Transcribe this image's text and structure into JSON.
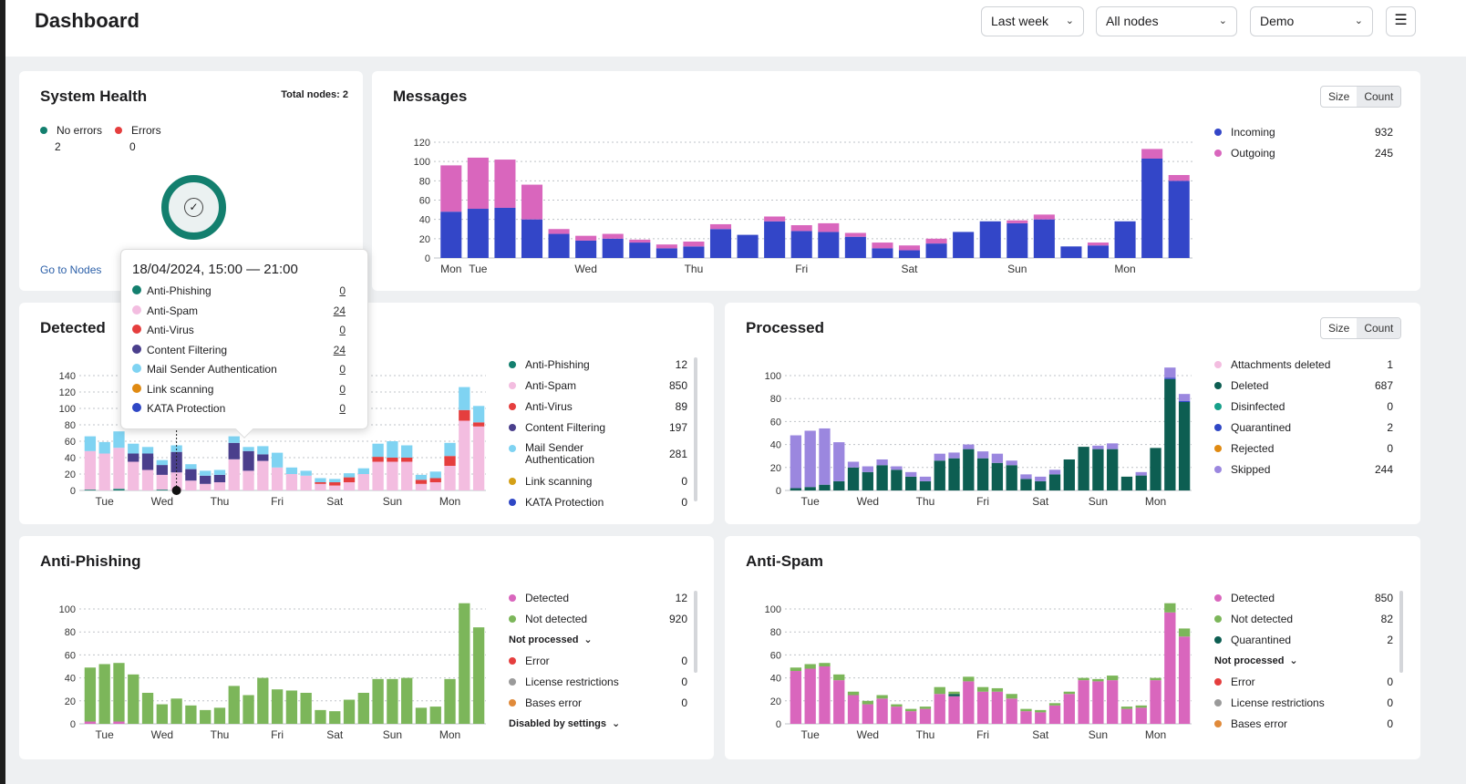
{
  "header": {
    "title": "Dashboard",
    "period": "Last week",
    "nodes": "All nodes",
    "tenant": "Demo"
  },
  "system_health": {
    "title": "System Health",
    "total_nodes": "Total nodes: 2",
    "no_errors_label": "No errors",
    "no_errors_value": "2",
    "errors_label": "Errors",
    "errors_value": "0",
    "link": "Go to Nodes"
  },
  "size_label": "Size",
  "count_label": "Count",
  "tooltip": {
    "title": "18/04/2024, 15:00 — 21:00",
    "rows": [
      {
        "label": "Anti-Phishing",
        "value": "0",
        "color": "#137f6e"
      },
      {
        "label": "Anti-Spam",
        "value": "24",
        "color": "#f3bde0"
      },
      {
        "label": "Anti-Virus",
        "value": "0",
        "color": "#e53e3e"
      },
      {
        "label": "Content Filtering",
        "value": "24",
        "color": "#4a3f8c"
      },
      {
        "label": "Mail Sender Authentication",
        "value": "0",
        "color": "#7fd3f2"
      },
      {
        "label": "Link scanning",
        "value": "0",
        "color": "#e08a12"
      },
      {
        "label": "KATA Protection",
        "value": "0",
        "color": "#2f47c5"
      }
    ]
  },
  "messages": {
    "title": "Messages",
    "legend": [
      {
        "label": "Incoming",
        "value": "932",
        "color": "#3346c8"
      },
      {
        "label": "Outgoing",
        "value": "245",
        "color": "#d966bd"
      }
    ]
  },
  "detected": {
    "title": "Detected",
    "legend": [
      {
        "label": "Anti-Phishing",
        "value": "12",
        "color": "#137f6e"
      },
      {
        "label": "Anti-Spam",
        "value": "850",
        "color": "#f3bde0"
      },
      {
        "label": "Anti-Virus",
        "value": "89",
        "color": "#e53e3e"
      },
      {
        "label": "Content Filtering",
        "value": "197",
        "color": "#4a3f8c"
      },
      {
        "label": "Mail Sender Authentication",
        "value": "281",
        "color": "#7fd3f2"
      },
      {
        "label": "Link scanning",
        "value": "0",
        "color": "#d4a017"
      },
      {
        "label": "KATA Protection",
        "value": "0",
        "color": "#2f47c5"
      }
    ]
  },
  "processed": {
    "title": "Processed",
    "legend": [
      {
        "label": "Attachments deleted",
        "value": "1",
        "color": "#f3bde0"
      },
      {
        "label": "Deleted",
        "value": "687",
        "color": "#0d5e52"
      },
      {
        "label": "Disinfected",
        "value": "0",
        "color": "#17a08a"
      },
      {
        "label": "Quarantined",
        "value": "2",
        "color": "#2f47c5"
      },
      {
        "label": "Rejected",
        "value": "0",
        "color": "#e08a12"
      },
      {
        "label": "Skipped",
        "value": "244",
        "color": "#9b87df"
      }
    ]
  },
  "anti_phishing": {
    "title": "Anti-Phishing",
    "legend": [
      {
        "label": "Detected",
        "value": "12",
        "color": "#d966bd"
      },
      {
        "label": "Not detected",
        "value": "920",
        "color": "#7cb65a"
      }
    ],
    "not_processed_label": "Not processed",
    "not_processed": [
      {
        "label": "Error",
        "value": "0",
        "color": "#e53e3e"
      },
      {
        "label": "License restrictions",
        "value": "0",
        "color": "#9a9a9a"
      },
      {
        "label": "Bases error",
        "value": "0",
        "color": "#e08a3a"
      }
    ],
    "disabled_label": "Disabled by settings"
  },
  "anti_spam": {
    "title": "Anti-Spam",
    "legend": [
      {
        "label": "Detected",
        "value": "850",
        "color": "#d966bd"
      },
      {
        "label": "Not detected",
        "value": "82",
        "color": "#7cb65a"
      },
      {
        "label": "Quarantined",
        "value": "2",
        "color": "#0d5e52"
      }
    ],
    "not_processed_label": "Not processed",
    "not_processed": [
      {
        "label": "Error",
        "value": "0",
        "color": "#e53e3e"
      },
      {
        "label": "License restrictions",
        "value": "0",
        "color": "#9a9a9a"
      },
      {
        "label": "Bases error",
        "value": "0",
        "color": "#e08a3a"
      }
    ]
  },
  "chart_data": [
    {
      "id": "messages",
      "type": "bar",
      "stacked": true,
      "ylim": [
        0,
        120
      ],
      "yticks": [
        0,
        20,
        40,
        60,
        80,
        100,
        120
      ],
      "day_labels": [
        "Mon",
        "Tue",
        "Wed",
        "Thu",
        "Fri",
        "Sat",
        "Sun",
        "Mon"
      ],
      "day_positions": [
        0,
        1,
        5,
        9,
        13,
        17,
        21,
        25
      ],
      "series": [
        {
          "name": "Incoming",
          "color": "#3346c8",
          "values": [
            48,
            51,
            52,
            40,
            25,
            18,
            20,
            16,
            10,
            12,
            30,
            24,
            38,
            28,
            27,
            22,
            10,
            8,
            15,
            27,
            38,
            36,
            40,
            12,
            13,
            38,
            103,
            80
          ]
        },
        {
          "name": "Outgoing",
          "color": "#d966bd",
          "values": [
            48,
            53,
            50,
            36,
            5,
            5,
            5,
            3,
            4,
            5,
            5,
            0,
            5,
            6,
            9,
            4,
            6,
            5,
            5,
            0,
            0,
            3,
            5,
            0,
            3,
            0,
            10,
            6
          ]
        }
      ]
    },
    {
      "id": "detected",
      "type": "bar",
      "stacked": true,
      "ylim": [
        0,
        140
      ],
      "yticks": [
        0,
        20,
        40,
        60,
        80,
        100,
        120,
        140
      ],
      "day_labels": [
        "Tue",
        "Wed",
        "Thu",
        "Fri",
        "Sat",
        "Sun",
        "Mon"
      ],
      "day_positions": [
        1,
        5,
        9,
        13,
        17,
        21,
        25
      ],
      "series": [
        {
          "name": "Anti-Phishing",
          "color": "#137f6e",
          "values": [
            1,
            0,
            2,
            0,
            0,
            1,
            0,
            0,
            0,
            0,
            0,
            0,
            0,
            0,
            0,
            0,
            0,
            0,
            0,
            0,
            0,
            0,
            0,
            0,
            0,
            0,
            0,
            0
          ]
        },
        {
          "name": "Anti-Spam",
          "color": "#f3bde0",
          "values": [
            47,
            45,
            50,
            35,
            25,
            18,
            22,
            12,
            8,
            10,
            38,
            24,
            36,
            28,
            20,
            18,
            8,
            6,
            10,
            20,
            35,
            35,
            35,
            8,
            10,
            30,
            85,
            78
          ]
        },
        {
          "name": "Anti-Virus",
          "color": "#e53e3e",
          "values": [
            0,
            0,
            0,
            0,
            0,
            0,
            0,
            0,
            0,
            0,
            0,
            0,
            0,
            0,
            0,
            0,
            2,
            4,
            6,
            0,
            6,
            5,
            5,
            5,
            5,
            12,
            13,
            5
          ]
        },
        {
          "name": "Content Filtering",
          "color": "#4a3f8c",
          "values": [
            0,
            0,
            0,
            10,
            20,
            12,
            25,
            14,
            10,
            9,
            20,
            24,
            8,
            0,
            0,
            0,
            0,
            0,
            0,
            0,
            0,
            0,
            0,
            0,
            0,
            0,
            0,
            0
          ]
        },
        {
          "name": "Mail Sender Authentication",
          "color": "#7fd3f2",
          "values": [
            18,
            14,
            20,
            12,
            8,
            6,
            8,
            6,
            6,
            6,
            8,
            5,
            10,
            18,
            8,
            6,
            5,
            4,
            5,
            7,
            16,
            20,
            15,
            6,
            8,
            16,
            28,
            20
          ]
        }
      ]
    },
    {
      "id": "processed",
      "type": "bar",
      "stacked": true,
      "ylim": [
        0,
        100
      ],
      "yticks": [
        0,
        20,
        40,
        60,
        80,
        100
      ],
      "day_labels": [
        "Tue",
        "Wed",
        "Thu",
        "Fri",
        "Sat",
        "Sun",
        "Mon"
      ],
      "day_positions": [
        1,
        5,
        9,
        13,
        17,
        21,
        25
      ],
      "series": [
        {
          "name": "Deleted",
          "color": "#0d5e52",
          "values": [
            2,
            3,
            5,
            8,
            20,
            16,
            22,
            18,
            12,
            8,
            26,
            28,
            36,
            28,
            24,
            22,
            10,
            8,
            14,
            27,
            38,
            36,
            36,
            12,
            13,
            37,
            97,
            77
          ]
        },
        {
          "name": "Quarantined",
          "color": "#2f47c5",
          "values": [
            0,
            0,
            0,
            0,
            0,
            0,
            0,
            0,
            0,
            0,
            0,
            0,
            0,
            0,
            0,
            0,
            0,
            0,
            0,
            0,
            0,
            0,
            0,
            0,
            0,
            0,
            1,
            1
          ]
        },
        {
          "name": "Skipped",
          "color": "#9b87df",
          "values": [
            46,
            49,
            49,
            34,
            5,
            5,
            5,
            3,
            4,
            4,
            6,
            5,
            4,
            6,
            8,
            4,
            4,
            4,
            4,
            0,
            0,
            3,
            5,
            0,
            3,
            0,
            9,
            6
          ]
        }
      ]
    },
    {
      "id": "anti_phishing",
      "type": "bar",
      "stacked": true,
      "ylim": [
        0,
        100
      ],
      "yticks": [
        0,
        20,
        40,
        60,
        80,
        100
      ],
      "day_labels": [
        "Tue",
        "Wed",
        "Thu",
        "Fri",
        "Sat",
        "Sun",
        "Mon"
      ],
      "day_positions": [
        1,
        5,
        9,
        13,
        17,
        21,
        25
      ],
      "series": [
        {
          "name": "Detected",
          "color": "#d966bd",
          "values": [
            2,
            0,
            2,
            0,
            0,
            0,
            0,
            0,
            0,
            0,
            0,
            0,
            0,
            0,
            0,
            0,
            0,
            0,
            0,
            0,
            0,
            0,
            0,
            0,
            0,
            0,
            0,
            0
          ]
        },
        {
          "name": "Not detected",
          "color": "#7cb65a",
          "values": [
            47,
            52,
            51,
            43,
            27,
            17,
            22,
            16,
            12,
            14,
            33,
            25,
            40,
            30,
            29,
            27,
            12,
            11,
            21,
            27,
            39,
            39,
            40,
            14,
            15,
            39,
            105,
            84
          ]
        }
      ]
    },
    {
      "id": "anti_spam",
      "type": "bar",
      "stacked": true,
      "ylim": [
        0,
        100
      ],
      "yticks": [
        0,
        20,
        40,
        60,
        80,
        100
      ],
      "day_labels": [
        "Tue",
        "Wed",
        "Thu",
        "Fri",
        "Sat",
        "Sun",
        "Mon"
      ],
      "day_positions": [
        1,
        5,
        9,
        13,
        17,
        21,
        25
      ],
      "series": [
        {
          "name": "Detected",
          "color": "#d966bd",
          "values": [
            46,
            48,
            50,
            38,
            25,
            17,
            22,
            15,
            11,
            13,
            26,
            24,
            37,
            28,
            28,
            22,
            11,
            10,
            16,
            26,
            38,
            37,
            38,
            13,
            14,
            38,
            97,
            76
          ]
        },
        {
          "name": "Quarantined",
          "color": "#0d5e52",
          "values": [
            0,
            0,
            0,
            0,
            0,
            0,
            0,
            0,
            0,
            0,
            0,
            2,
            0,
            0,
            0,
            0,
            0,
            0,
            0,
            0,
            0,
            0,
            0,
            0,
            0,
            0,
            0,
            0
          ]
        },
        {
          "name": "Not detected",
          "color": "#7cb65a",
          "values": [
            3,
            4,
            3,
            5,
            3,
            3,
            3,
            2,
            2,
            2,
            6,
            2,
            4,
            4,
            3,
            4,
            2,
            2,
            2,
            2,
            2,
            2,
            4,
            2,
            2,
            2,
            8,
            7
          ]
        }
      ]
    }
  ]
}
